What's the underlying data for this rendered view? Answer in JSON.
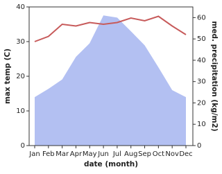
{
  "chart_data": {
    "type": "line-area",
    "categories": [
      "Jan",
      "Feb",
      "Mar",
      "Apr",
      "May",
      "Jun",
      "Jul",
      "Aug",
      "Sep",
      "Oct",
      "Nov",
      "Dec"
    ],
    "x_label": "date (month)",
    "y_label": "max temp (C)",
    "y2_label": "med. precipitation (kg/m2)",
    "ylim": [
      0,
      40
    ],
    "yticks": [
      0,
      10,
      20,
      30,
      40
    ],
    "y2lim": [
      0,
      65
    ],
    "y2ticks": [
      0,
      10,
      20,
      30,
      40,
      50,
      60
    ],
    "series": [
      {
        "name": "med. precipitation",
        "color": "#b3c0f2",
        "axis": "y2",
        "kind": "area",
        "values": [
          22.7,
          26.6,
          31,
          41.6,
          48,
          61,
          60,
          53.6,
          47,
          36.7,
          26,
          22.7
        ]
      },
      {
        "name": "max temp",
        "color": "#c75a5a",
        "axis": "y",
        "kind": "line",
        "values": [
          30,
          31.5,
          35,
          34.5,
          35.5,
          35,
          35.5,
          36.8,
          36,
          37.3,
          34.5,
          32
        ]
      }
    ]
  }
}
